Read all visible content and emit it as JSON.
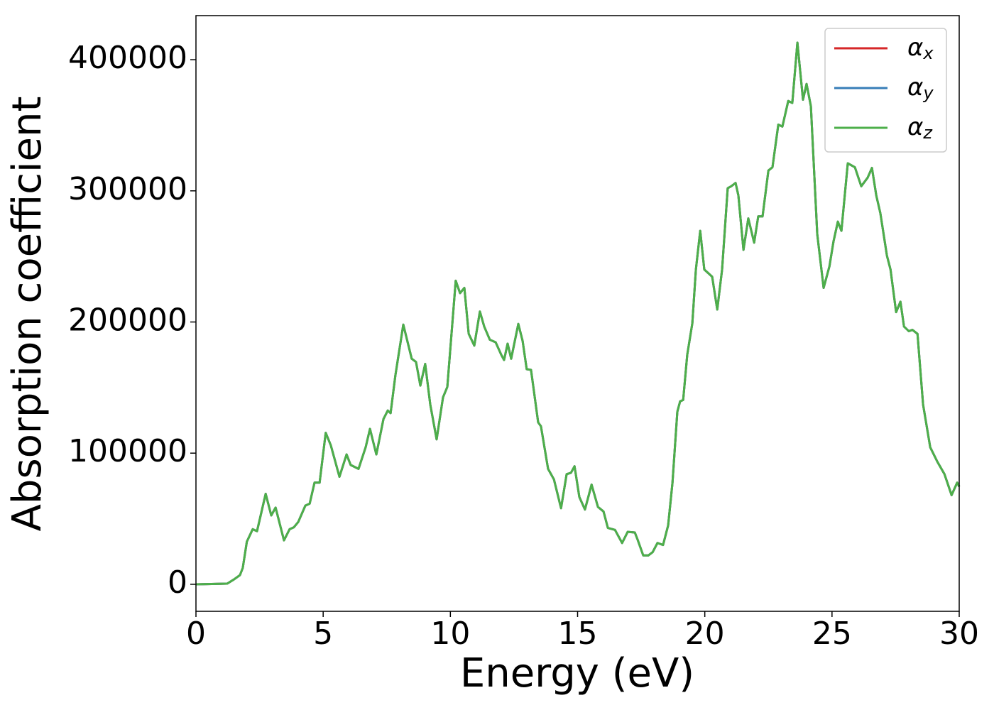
{
  "chart_data": {
    "type": "line",
    "xlabel": "Energy (eV)",
    "ylabel": "Absorption coefficient",
    "xlim": [
      0,
      30
    ],
    "xticks": [
      0,
      5,
      10,
      15,
      20,
      25,
      30
    ],
    "ylim": [
      -20600,
      433600
    ],
    "yticks": [
      0,
      100000,
      200000,
      300000,
      400000
    ],
    "grid": false,
    "legend": "upper right",
    "x": [
      0,
      1.23,
      1.5,
      1.73,
      1.84,
      2.0,
      2.23,
      2.4,
      2.74,
      2.96,
      3.13,
      3.46,
      3.68,
      3.85,
      4.02,
      4.3,
      4.47,
      4.66,
      4.86,
      5.1,
      5.3,
      5.64,
      5.92,
      6.08,
      6.39,
      6.67,
      6.84,
      7.09,
      7.37,
      7.54,
      7.65,
      7.84,
      8.15,
      8.48,
      8.65,
      8.82,
      9.01,
      9.21,
      9.46,
      9.71,
      9.88,
      10.21,
      10.38,
      10.55,
      10.72,
      10.94,
      11.16,
      11.33,
      11.55,
      11.78,
      12.0,
      12.11,
      12.25,
      12.39,
      12.67,
      12.84,
      13.0,
      13.17,
      13.45,
      13.56,
      13.84,
      14.07,
      14.35,
      14.57,
      14.74,
      14.88,
      15.07,
      15.29,
      15.55,
      15.69,
      15.8,
      16.02,
      16.19,
      16.47,
      16.75,
      16.97,
      17.25,
      17.36,
      17.58,
      17.78,
      17.95,
      18.14,
      18.36,
      18.56,
      18.73,
      18.92,
      19.03,
      19.15,
      19.31,
      19.51,
      19.65,
      19.82,
      19.98,
      20.15,
      20.29,
      20.49,
      20.68,
      20.9,
      21.04,
      21.21,
      21.32,
      21.52,
      21.71,
      21.94,
      22.1,
      22.27,
      22.5,
      22.66,
      22.89,
      23.05,
      23.28,
      23.44,
      23.64,
      23.86,
      24.0,
      24.17,
      24.42,
      24.67,
      24.9,
      25.06,
      25.23,
      25.37,
      25.62,
      25.9,
      26.15,
      26.4,
      26.57,
      26.74,
      26.9,
      27.16,
      27.3,
      27.52,
      27.69,
      27.83,
      28.02,
      28.16,
      28.36,
      28.58,
      28.86,
      29.14,
      29.42,
      29.7,
      29.92,
      30
    ],
    "series": [
      {
        "name": "αx",
        "color": "#d62728",
        "values": [
          0,
          500,
          3800,
          7000,
          12500,
          32500,
          42000,
          40500,
          69000,
          52500,
          58500,
          33500,
          42000,
          43500,
          47500,
          60000,
          61500,
          77500,
          77500,
          115500,
          106000,
          82000,
          99000,
          91000,
          88000,
          104500,
          118500,
          99000,
          126000,
          132500,
          130500,
          159500,
          198000,
          172000,
          169500,
          151500,
          168000,
          137000,
          110500,
          142500,
          150500,
          231500,
          222000,
          226000,
          191000,
          182000,
          208000,
          196500,
          186500,
          184500,
          175000,
          171000,
          183500,
          172000,
          198500,
          185500,
          164000,
          163500,
          123500,
          120500,
          88000,
          80000,
          58000,
          84000,
          85000,
          90000,
          66500,
          57000,
          76000,
          66500,
          59000,
          55500,
          43000,
          41500,
          31500,
          40000,
          39500,
          34000,
          22000,
          22000,
          24500,
          31500,
          30000,
          45000,
          77500,
          131500,
          139500,
          140500,
          175000,
          199000,
          240000,
          269500,
          240000,
          237000,
          234500,
          209500,
          240000,
          302000,
          303500,
          306000,
          296500,
          255000,
          279000,
          260500,
          280500,
          280500,
          315500,
          318000,
          350500,
          349000,
          368500,
          367000,
          413000,
          369500,
          381500,
          364500,
          267000,
          226000,
          242500,
          261500,
          276500,
          269500,
          321000,
          318000,
          303500,
          310000,
          317500,
          296500,
          283000,
          250500,
          240000,
          207500,
          215500,
          196500,
          193000,
          194000,
          191000,
          137000,
          104500,
          93500,
          84000,
          68000,
          77500,
          74500
        ]
      },
      {
        "name": "αy",
        "color": "#377eb8",
        "values": [
          0,
          500,
          3800,
          7000,
          12500,
          32500,
          42000,
          40500,
          69000,
          52500,
          58500,
          33500,
          42000,
          43500,
          47500,
          60000,
          61500,
          77500,
          77500,
          115500,
          106000,
          82000,
          99000,
          91000,
          88000,
          104500,
          118500,
          99000,
          126000,
          132500,
          130500,
          159500,
          198000,
          172000,
          169500,
          151500,
          168000,
          137000,
          110500,
          142500,
          150500,
          231500,
          222000,
          226000,
          191000,
          182000,
          208000,
          196500,
          186500,
          184500,
          175000,
          171000,
          183500,
          172000,
          198500,
          185500,
          164000,
          163500,
          123500,
          120500,
          88000,
          80000,
          58000,
          84000,
          85000,
          90000,
          66500,
          57000,
          76000,
          66500,
          59000,
          55500,
          43000,
          41500,
          31500,
          40000,
          39500,
          34000,
          22000,
          22000,
          24500,
          31500,
          30000,
          45000,
          77500,
          131500,
          139500,
          140500,
          175000,
          199000,
          240000,
          269500,
          240000,
          237000,
          234500,
          209500,
          240000,
          302000,
          303500,
          306000,
          296500,
          255000,
          279000,
          260500,
          280500,
          280500,
          315500,
          318000,
          350500,
          349000,
          368500,
          367000,
          413000,
          369500,
          381500,
          364500,
          267000,
          226000,
          242500,
          261500,
          276500,
          269500,
          321000,
          318000,
          303500,
          310000,
          317500,
          296500,
          283000,
          250500,
          240000,
          207500,
          215500,
          196500,
          193000,
          194000,
          191000,
          137000,
          104500,
          93500,
          84000,
          68000,
          77500,
          74500
        ]
      },
      {
        "name": "αz",
        "color": "#4daf4a",
        "values": [
          0,
          500,
          3800,
          7000,
          12500,
          32500,
          42000,
          40500,
          69000,
          52500,
          58500,
          33500,
          42000,
          43500,
          47500,
          60000,
          61500,
          77500,
          77500,
          115500,
          106000,
          82000,
          99000,
          91000,
          88000,
          104500,
          118500,
          99000,
          126000,
          132500,
          130500,
          159500,
          198000,
          172000,
          169500,
          151500,
          168000,
          137000,
          110500,
          142500,
          150500,
          231500,
          222000,
          226000,
          191000,
          182000,
          208000,
          196500,
          186500,
          184500,
          175000,
          171000,
          183500,
          172000,
          198500,
          185500,
          164000,
          163500,
          123500,
          120500,
          88000,
          80000,
          58000,
          84000,
          85000,
          90000,
          66500,
          57000,
          76000,
          66500,
          59000,
          55500,
          43000,
          41500,
          31500,
          40000,
          39500,
          34000,
          22000,
          22000,
          24500,
          31500,
          30000,
          45000,
          77500,
          131500,
          139500,
          140500,
          175000,
          199000,
          240000,
          269500,
          240000,
          237000,
          234500,
          209500,
          240000,
          302000,
          303500,
          306000,
          296500,
          255000,
          279000,
          260500,
          280500,
          280500,
          315500,
          318000,
          350500,
          349000,
          368500,
          367000,
          413000,
          369500,
          381500,
          364500,
          267000,
          226000,
          242500,
          261500,
          276500,
          269500,
          321000,
          318000,
          303500,
          310000,
          317500,
          296500,
          283000,
          250500,
          240000,
          207500,
          215500,
          196500,
          193000,
          194000,
          191000,
          137000,
          104500,
          93500,
          84000,
          68000,
          77500,
          74500
        ]
      }
    ]
  }
}
